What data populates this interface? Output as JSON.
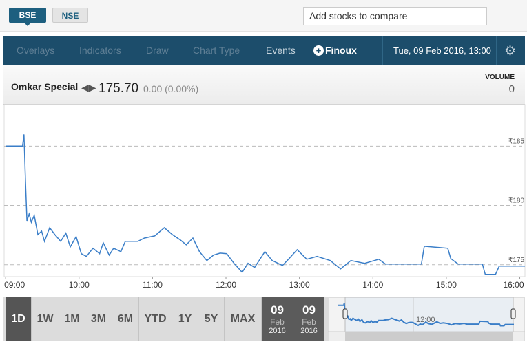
{
  "exchanges": [
    "BSE",
    "NSE"
  ],
  "compare_placeholder": "Add stocks to compare",
  "toolbar": {
    "items": [
      "Overlays",
      "Indicators",
      "Draw",
      "Chart Type",
      "Events"
    ],
    "logo": "Finoux",
    "datetime": "Tue, 09 Feb 2016, 13:00"
  },
  "quote": {
    "name": "Omkar Special",
    "price": "175.70",
    "change": "0.00 (0.00%)",
    "volume_label": "VOLUME",
    "volume": "0"
  },
  "chart_data": {
    "type": "line",
    "x": [
      9.0,
      9.23,
      9.25,
      9.27,
      9.29,
      9.32,
      9.35,
      9.39,
      9.44,
      9.49,
      9.53,
      9.6,
      9.67,
      9.75,
      9.82,
      9.88,
      9.96,
      10.03,
      10.1,
      10.19,
      10.28,
      10.33,
      10.41,
      10.47,
      10.57,
      10.63,
      10.8,
      10.89,
      11.03,
      11.16,
      11.27,
      11.38,
      11.46,
      11.55,
      11.64,
      11.74,
      11.83,
      11.92,
      12.01,
      12.11,
      12.22,
      12.3,
      12.39,
      12.53,
      12.63,
      12.77,
      12.86,
      12.97,
      13.1,
      13.24,
      13.42,
      13.56,
      13.7,
      13.89,
      14.08,
      14.17,
      14.36,
      14.66,
      14.7,
      15.02,
      15.06,
      15.16,
      15.49,
      15.53,
      15.67,
      15.72,
      16.07
    ],
    "series": [
      {
        "color": "#3a7ec8",
        "values": [
          185,
          185,
          185.98,
          182.17,
          178.7,
          179.28,
          178.58,
          179.16,
          177.54,
          177.83,
          176.97,
          178.12,
          177.54,
          176.97,
          177.66,
          176.5,
          177.37,
          175.93,
          175.7,
          176.39,
          175.93,
          176.85,
          175.81,
          176.39,
          176.1,
          176.97,
          176.97,
          177.25,
          177.43,
          178.12,
          177.54,
          177.08,
          176.68,
          177.25,
          176.1,
          175.35,
          175.81,
          175.98,
          175.93,
          175.12,
          174.36,
          175.12,
          174.77,
          176.1,
          175.35,
          174.94,
          175.52,
          176.27,
          175.46,
          175.7,
          175.35,
          174.65,
          175.35,
          175.12,
          175.46,
          175.06,
          175.06,
          175.06,
          176.56,
          176.39,
          175.52,
          175.06,
          175.06,
          174.19,
          174.19,
          174.88,
          174.88
        ]
      }
    ],
    "xlim": [
      8.98,
      16.07
    ],
    "ylim": [
      174,
      188.5
    ],
    "xticks": [
      {
        "value": 9,
        "label": "09:00"
      },
      {
        "value": 10,
        "label": "10:00"
      },
      {
        "value": 11,
        "label": "11:00"
      },
      {
        "value": 12,
        "label": "12:00"
      },
      {
        "value": 13,
        "label": "13:00"
      },
      {
        "value": 14,
        "label": "14:00"
      },
      {
        "value": 15,
        "label": "15:00"
      },
      {
        "value": 16,
        "label": "16:00"
      }
    ],
    "yticks": [
      {
        "value": 175,
        "label": "₹175"
      },
      {
        "value": 180,
        "label": "₹180"
      },
      {
        "value": 185,
        "label": "₹185"
      }
    ],
    "grid": true
  },
  "ranges": [
    "1D",
    "1W",
    "1M",
    "3M",
    "6M",
    "YTD",
    "1Y",
    "5Y",
    "MAX"
  ],
  "dates": [
    {
      "day": "09",
      "month": "Feb",
      "year": "2016"
    },
    {
      "day": "09",
      "month": "Feb",
      "year": "2016"
    }
  ],
  "navigator": {
    "label": "12:00"
  }
}
